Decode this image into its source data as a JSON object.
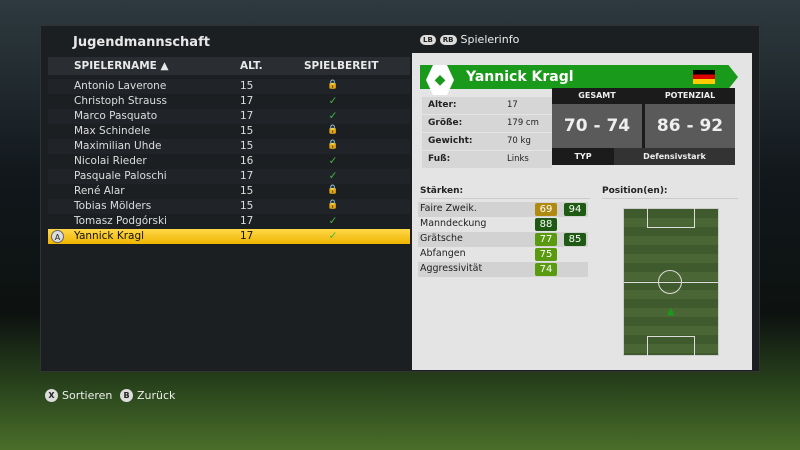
{
  "title": "Jugendmannschaft",
  "tabs": {
    "lb": "LB",
    "rb": "RB",
    "label": "Spielerinfo"
  },
  "table": {
    "headers": [
      "SPIELERNAME ▲",
      "ALT.",
      "SPIELBEREIT"
    ],
    "rows": [
      {
        "name": "Antonio Laverone",
        "age": "15",
        "ready": false
      },
      {
        "name": "Christoph Strauss",
        "age": "17",
        "ready": true
      },
      {
        "name": "Marco Pasquato",
        "age": "17",
        "ready": true
      },
      {
        "name": "Max Schindele",
        "age": "15",
        "ready": false
      },
      {
        "name": "Maximilian Uhde",
        "age": "15",
        "ready": false
      },
      {
        "name": "Nicolai Rieder",
        "age": "16",
        "ready": true
      },
      {
        "name": "Pasquale Paloschi",
        "age": "17",
        "ready": true
      },
      {
        "name": "René Alar",
        "age": "15",
        "ready": false
      },
      {
        "name": "Tobias Mölders",
        "age": "15",
        "ready": false
      },
      {
        "name": "Tomasz Podgórski",
        "age": "17",
        "ready": true
      },
      {
        "name": "Yannick Kragl",
        "age": "17",
        "ready": true,
        "selected": true
      }
    ],
    "select_button": "A"
  },
  "player": {
    "name": "Yannick Kragl",
    "nation_flag": "germany",
    "info": [
      {
        "k": "Alter:",
        "v": "17"
      },
      {
        "k": "Größe:",
        "v": "179 cm"
      },
      {
        "k": "Gewicht:",
        "v": "70 kg"
      },
      {
        "k": "Fuß:",
        "v": "Links"
      }
    ],
    "gesamt_label": "GESAMT",
    "gesamt": "70 - 74",
    "potenzial_label": "POTENZIAL",
    "potenzial": "86 - 92",
    "typ_label": "TYP",
    "typ": "Defensivstark"
  },
  "strengths": {
    "title": "Stärken:",
    "items": [
      {
        "label": "Faire Zweik.",
        "v1": "69",
        "c1": "#b08a10",
        "v2": "94",
        "c2": "#1f5a14"
      },
      {
        "label": "Manndeckung",
        "v1": "88",
        "c1": "#1f5a14"
      },
      {
        "label": "Grätsche",
        "v1": "77",
        "c1": "#5a9a10",
        "v2": "85",
        "c2": "#1f5a14"
      },
      {
        "label": "Abfangen",
        "v1": "75",
        "c1": "#5a9a10"
      },
      {
        "label": "Aggressivität",
        "v1": "74",
        "c1": "#5a9a10"
      }
    ]
  },
  "positions": {
    "title": "Position(en):"
  },
  "footer": [
    {
      "btn": "X",
      "label": "Sortieren"
    },
    {
      "btn": "B",
      "label": "Zurück"
    }
  ]
}
